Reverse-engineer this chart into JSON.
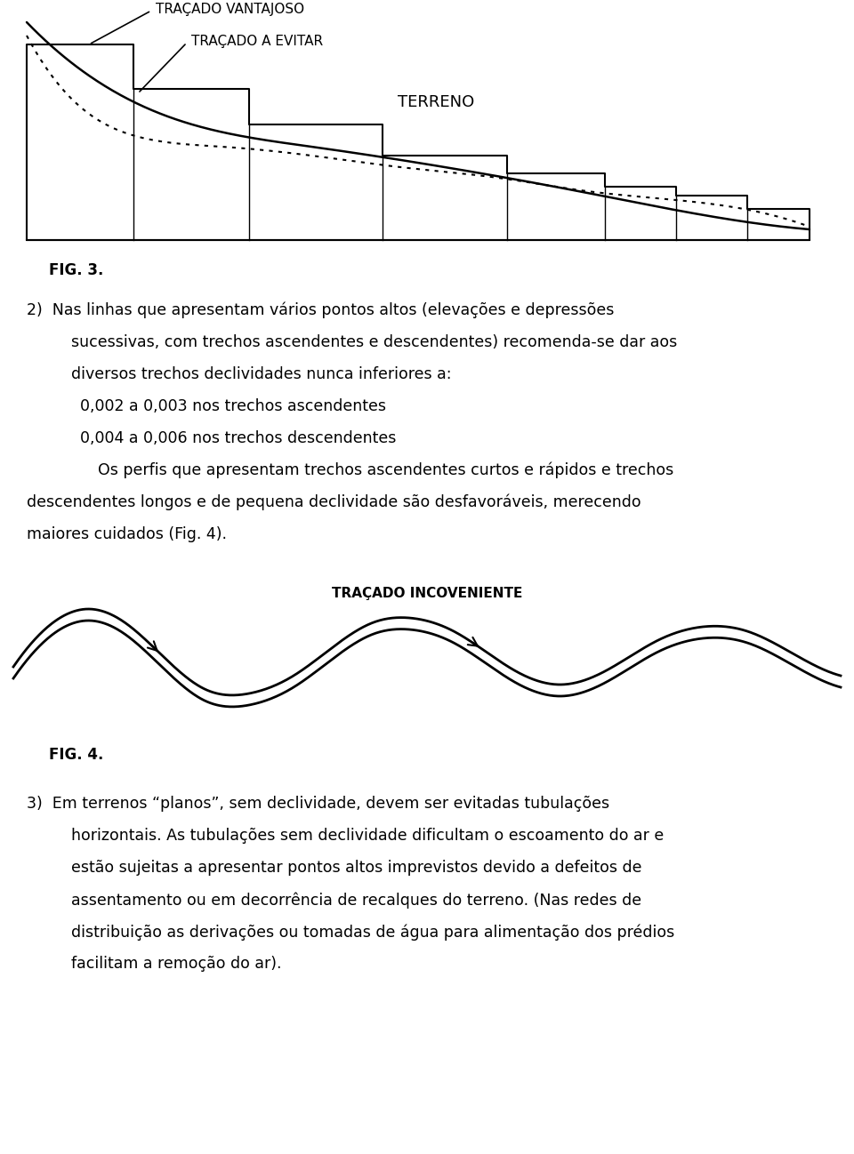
{
  "fig_width": 9.6,
  "fig_height": 12.98,
  "bg_color": "#ffffff",
  "fig3_title": "TRAÇADO VANTAJOSO",
  "fig3_title2": "TRAÇADO A EVITAR",
  "fig3_terreno": "TERRENO",
  "fig3_label": "FIG. 3.",
  "fig4_title": "TRAÇADO INCOVENIENTE",
  "fig4_label": "FIG. 4.",
  "text_block": [
    "2)  Nas linhas que apresentam vários pontos altos (elevações e depressões",
    "    sucessivas, com trechos ascendentes e descendentes) recomenda-se dar aos",
    "    diversos trechos declividades nunca inferiores a:",
    "    0,002 a 0,003 nos trechos ascendentes",
    "    0,004 a 0,006 nos trechos descendentes",
    "        Os perfis que apresentam trechos ascendentes curtos e rápidos e trechos",
    "descendentes longos e de pequena declividade são desfavoráveis, merecendo",
    "maiores cuidados (Fig. 4)."
  ],
  "text_block3": [
    "3)  Em terrenos “planos”, sem declividade, devem ser evitadas tubulações",
    "    horizontais. As tubulações sem declividade dificultam o escoamento do ar e",
    "    estão sujeitas a apresentar pontos altos imprevistos devido a defeitos de",
    "    assentamento ou em decorrência de recalques do terreno. (Nas redes de",
    "    distribuição as derivações ou tomadas de água para alimentação dos prédios",
    "    facilitam a remoção do ar)."
  ],
  "line_color": "#000000",
  "dashed_color": "#000000"
}
